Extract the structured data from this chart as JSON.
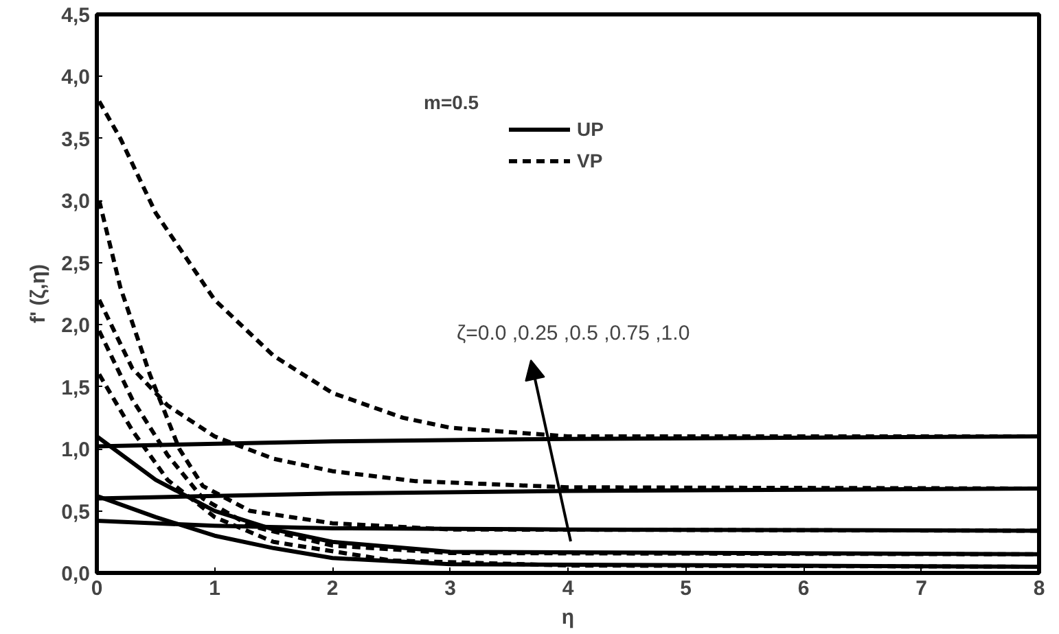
{
  "chart_data": {
    "type": "line",
    "xlabel": "η",
    "ylabel": "f' (ζ,η)",
    "legend_title": "m=0.5",
    "legend": "top",
    "xlim": [
      0,
      8
    ],
    "ylim": [
      0,
      4.5
    ],
    "xticks": [
      0,
      1,
      2,
      3,
      4,
      5,
      6,
      7,
      8
    ],
    "yticks": [
      {
        "value": 0,
        "label": "0,0"
      },
      {
        "value": 0.5,
        "label": "0,5"
      },
      {
        "value": 1,
        "label": "1,0"
      },
      {
        "value": 1.5,
        "label": "1,5"
      },
      {
        "value": 2,
        "label": "2,0"
      },
      {
        "value": 2.5,
        "label": "2,5"
      },
      {
        "value": 3,
        "label": "3,0"
      },
      {
        "value": 3.5,
        "label": "3,5"
      },
      {
        "value": 4,
        "label": "4,0"
      },
      {
        "value": 4.5,
        "label": "4,5"
      }
    ],
    "grid": false,
    "marker": "none",
    "series": [
      {
        "name": "UP",
        "color": "#000000",
        "line_style": "solid",
        "x": [
          0,
          2,
          4,
          8
        ],
        "values": [
          1.02,
          1.06,
          1.08,
          1.1
        ]
      },
      {
        "color": "#000000",
        "line_style": "solid",
        "x": [
          0,
          2,
          4,
          8
        ],
        "values": [
          0.6,
          0.64,
          0.66,
          0.68
        ]
      },
      {
        "color": "#000000",
        "line_style": "solid",
        "x": [
          0,
          1,
          2,
          4,
          8
        ],
        "values": [
          0.42,
          0.38,
          0.36,
          0.35,
          0.34
        ]
      },
      {
        "color": "#000000",
        "line_style": "solid",
        "x": [
          0,
          0.5,
          1,
          1.5,
          2,
          3,
          8
        ],
        "values": [
          1.1,
          0.75,
          0.5,
          0.35,
          0.25,
          0.17,
          0.15
        ]
      },
      {
        "color": "#000000",
        "line_style": "solid",
        "x": [
          0,
          0.5,
          1,
          1.5,
          2,
          3,
          8
        ],
        "values": [
          0.62,
          0.45,
          0.3,
          0.2,
          0.12,
          0.07,
          0.05
        ]
      },
      {
        "name": "VP",
        "color": "#000000",
        "line_style": "dashed",
        "x": [
          0.02,
          0.2,
          0.5,
          1,
          1.5,
          2,
          2.6,
          3,
          4,
          8
        ],
        "values": [
          3.8,
          3.5,
          2.9,
          2.2,
          1.75,
          1.45,
          1.25,
          1.17,
          1.1,
          1.1
        ]
      },
      {
        "color": "#000000",
        "line_style": "dashed",
        "x": [
          0.02,
          0.3,
          0.6,
          1,
          1.5,
          2,
          2.7,
          4,
          8
        ],
        "values": [
          2.2,
          1.65,
          1.35,
          1.1,
          0.92,
          0.82,
          0.74,
          0.69,
          0.68
        ]
      },
      {
        "color": "#000000",
        "line_style": "dashed",
        "x": [
          0.02,
          0.2,
          0.45,
          0.7,
          0.9,
          1.3,
          2,
          3,
          8
        ],
        "values": [
          3.0,
          2.3,
          1.6,
          1.0,
          0.7,
          0.5,
          0.4,
          0.35,
          0.34
        ]
      },
      {
        "color": "#000000",
        "line_style": "dashed",
        "x": [
          0.02,
          0.3,
          0.6,
          0.9,
          1.3,
          2,
          3,
          8
        ],
        "values": [
          1.95,
          1.4,
          0.95,
          0.6,
          0.38,
          0.22,
          0.16,
          0.15
        ]
      },
      {
        "color": "#000000",
        "line_style": "dashed",
        "x": [
          0.02,
          0.3,
          0.6,
          1,
          1.5,
          2.5,
          4,
          8
        ],
        "values": [
          1.6,
          1.15,
          0.75,
          0.45,
          0.25,
          0.1,
          0.06,
          0.05
        ]
      }
    ],
    "annotations": [
      "ζ=0.0 ,0.25 ,0.5 ,0.75 ,1.0"
    ]
  }
}
